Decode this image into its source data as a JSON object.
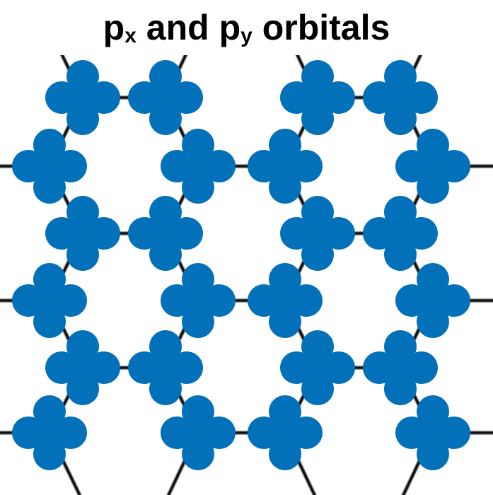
{
  "title": {
    "p1": "p",
    "sub1": "x",
    "mid": " and ",
    "p2": "p",
    "sub2": "y",
    "end": " orbitals"
  },
  "colors": {
    "orbital": "#0271BA",
    "bond": "#111111",
    "background": "#ffffff"
  },
  "icon": "four-lobe-p-orbital-icon"
}
